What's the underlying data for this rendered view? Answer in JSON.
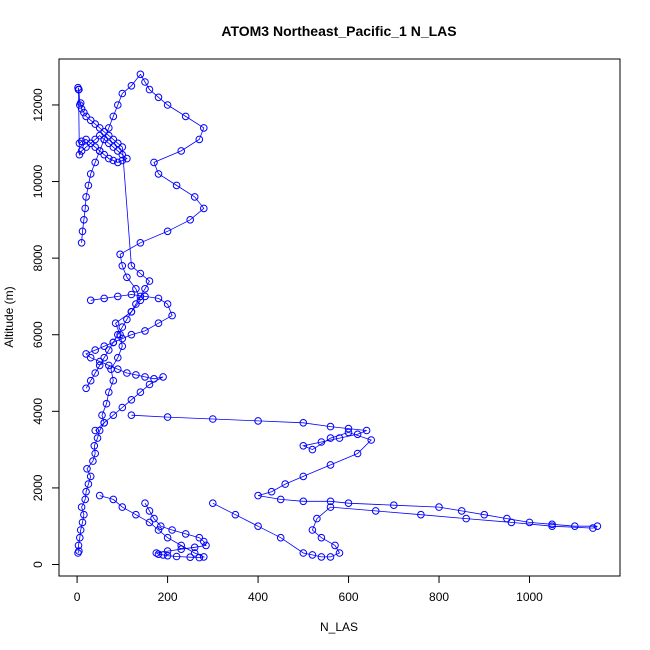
{
  "chart_data": {
    "type": "scatter",
    "title": "ATOM3 Northeast_Pacific_1 N_LAS",
    "xlabel": "N_LAS",
    "ylabel": "Altitude (m)",
    "xlim": [
      -40,
      1200
    ],
    "ylim": [
      -300,
      13200
    ],
    "x_ticks": [
      "0",
      "200",
      "400",
      "600",
      "800",
      "1000"
    ],
    "y_ticks": [
      "0",
      "2000",
      "4000",
      "6000",
      "8000",
      "10000",
      "12000"
    ],
    "grid": false,
    "legend": "none",
    "color": "#0000ff",
    "marker": "open-circle",
    "connected": true,
    "series": [
      {
        "x": [
          2,
          4,
          3,
          6,
          8,
          12,
          15,
          10,
          18,
          20,
          25,
          30,
          22,
          35,
          40,
          38,
          45,
          50,
          60,
          55,
          65,
          70,
          80,
          75,
          90,
          100,
          95,
          85,
          120,
          140,
          130,
          110,
          100,
          95,
          140,
          200,
          250,
          280,
          260,
          220,
          180,
          170,
          230,
          270,
          280,
          240,
          200,
          180,
          160,
          150,
          140,
          120,
          100,
          90,
          80,
          70,
          60,
          50,
          40,
          30,
          25,
          20,
          18,
          15,
          12,
          10
        ],
        "y": [
          300,
          350,
          500,
          700,
          900,
          1100,
          1300,
          1500,
          1700,
          1900,
          2100,
          2300,
          2500,
          2700,
          2900,
          3100,
          3300,
          3500,
          3700,
          3900,
          4200,
          4500,
          4800,
          5100,
          5400,
          5700,
          6000,
          6300,
          6600,
          6900,
          7200,
          7500,
          7800,
          8100,
          8400,
          8700,
          9000,
          9300,
          9600,
          9900,
          10200,
          10500,
          10800,
          11100,
          11400,
          11700,
          12000,
          12200,
          12400,
          12600,
          12800,
          12500,
          12300,
          12000,
          11700,
          11400,
          11100,
          10800,
          10500,
          10200,
          9900,
          9600,
          9300,
          9000,
          8700,
          8400
        ]
      },
      {
        "x": [
          50,
          80,
          100,
          130,
          160,
          180,
          200,
          230,
          260,
          280,
          270,
          250,
          220,
          200,
          190,
          180,
          175,
          200,
          230,
          260,
          285,
          280,
          270,
          240,
          210,
          185,
          170,
          160,
          150
        ],
        "y": [
          1800,
          1700,
          1500,
          1300,
          1100,
          900,
          700,
          500,
          300,
          200,
          180,
          190,
          210,
          230,
          250,
          270,
          300,
          350,
          400,
          450,
          500,
          600,
          700,
          800,
          900,
          1000,
          1200,
          1400,
          1600
        ]
      },
      {
        "x": [
          120,
          200,
          300,
          400,
          500,
          560,
          600,
          640,
          620,
          580,
          540,
          500,
          520,
          560,
          600,
          650,
          620,
          560,
          500,
          460,
          430,
          400,
          450,
          500,
          560,
          600,
          700,
          800,
          850,
          900,
          950,
          1000,
          1050,
          1100,
          1150,
          1140,
          1050,
          960,
          860,
          760,
          660,
          560,
          530,
          520,
          540,
          570,
          580,
          560,
          540,
          520,
          500,
          450,
          400,
          350,
          300
        ],
        "y": [
          3900,
          3850,
          3800,
          3750,
          3700,
          3600,
          3550,
          3500,
          3400,
          3300,
          3200,
          3100,
          3000,
          3300,
          3450,
          3250,
          2900,
          2600,
          2300,
          2100,
          1900,
          1800,
          1700,
          1650,
          1650,
          1600,
          1550,
          1500,
          1400,
          1300,
          1200,
          1100,
          1050,
          1000,
          1000,
          950,
          1000,
          1100,
          1200,
          1300,
          1400,
          1500,
          1200,
          900,
          700,
          500,
          300,
          200,
          200,
          250,
          300,
          700,
          1000,
          1300,
          1600
        ]
      },
      {
        "x": [
          5,
          10,
          20,
          30,
          40,
          50,
          60,
          70,
          80,
          90,
          100,
          110,
          100,
          90,
          80,
          70,
          60,
          50,
          40,
          30,
          20,
          10,
          5,
          3,
          2,
          4,
          6,
          8,
          10,
          15,
          20,
          30,
          40,
          50,
          60,
          70,
          80,
          90,
          100,
          120,
          140,
          160,
          150,
          140,
          130,
          120,
          110,
          100,
          90,
          80,
          70,
          60,
          50,
          40,
          30,
          20
        ],
        "y": [
          11000,
          11050,
          11100,
          11000,
          10900,
          10800,
          10700,
          10600,
          10550,
          10500,
          10550,
          10600,
          10700,
          10800,
          10900,
          11000,
          11100,
          11200,
          11100,
          11000,
          10900,
          10800,
          10700,
          12400,
          12450,
          12400,
          12000,
          12050,
          11900,
          11800,
          11700,
          11600,
          11500,
          11400,
          11300,
          11200,
          11100,
          11000,
          10900,
          7800,
          7600,
          7400,
          7200,
          7000,
          6800,
          6600,
          6400,
          6200,
          6000,
          5800,
          5600,
          5400,
          5200,
          5000,
          4800,
          4600
        ]
      },
      {
        "x": [
          30,
          60,
          90,
          120,
          150,
          180,
          200,
          210,
          180,
          150,
          120,
          100,
          80,
          60,
          40,
          20,
          30,
          50,
          70,
          90,
          110,
          130,
          150,
          170,
          190,
          160,
          140,
          120,
          100,
          80,
          60,
          40
        ],
        "y": [
          6900,
          6950,
          7000,
          7050,
          7000,
          6950,
          6800,
          6500,
          6300,
          6100,
          6000,
          5900,
          5800,
          5700,
          5600,
          5500,
          5400,
          5300,
          5200,
          5100,
          5000,
          4950,
          4900,
          4850,
          4900,
          4700,
          4500,
          4300,
          4100,
          3900,
          3700,
          3500
        ]
      }
    ]
  }
}
